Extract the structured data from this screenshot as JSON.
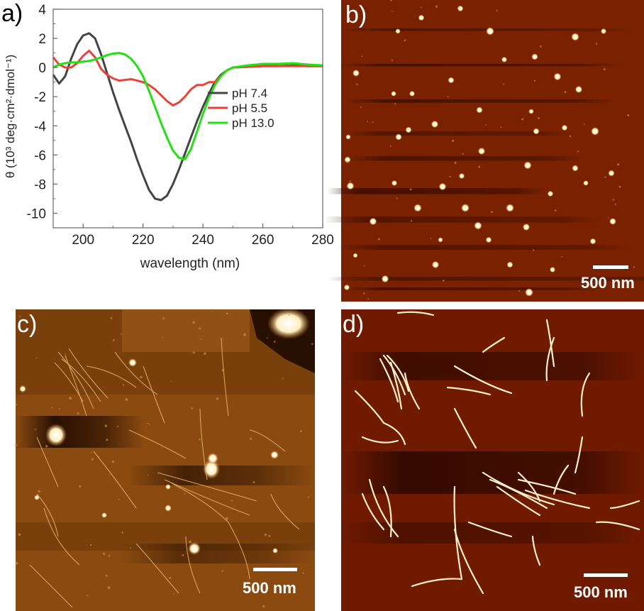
{
  "panels": {
    "a": {
      "label": "a)"
    },
    "b": {
      "label": "b)",
      "scale_label": "500 nm"
    },
    "c": {
      "label": "c)",
      "scale_label": "500 nm"
    },
    "d": {
      "label": "d)",
      "scale_label": "500 nm"
    }
  },
  "chart_data": {
    "type": "line",
    "title": "",
    "xlabel": "wavelength (nm)",
    "ylabel": "θ (10³ deg·cm²·dmol⁻¹)",
    "xlim": [
      190,
      280
    ],
    "ylim": [
      -11,
      4
    ],
    "xticks": [
      200,
      220,
      240,
      260,
      280
    ],
    "yticks": [
      4,
      2,
      0,
      -2,
      -4,
      -6,
      -8,
      -10
    ],
    "legend_position": "center-right",
    "series": [
      {
        "name": "pH 7.4",
        "color": "#444444",
        "x": [
          190,
          192,
          194,
          196,
          198,
          200,
          202,
          204,
          206,
          208,
          210,
          212,
          214,
          216,
          218,
          220,
          222,
          224,
          226,
          228,
          230,
          232,
          234,
          236,
          238,
          240,
          242,
          244,
          246,
          248,
          250,
          255,
          260,
          265,
          270,
          275,
          280
        ],
        "y": [
          -0.5,
          -1.1,
          -0.6,
          0.6,
          1.6,
          2.2,
          2.35,
          2.0,
          0.9,
          -0.4,
          -1.7,
          -2.9,
          -4.0,
          -5.1,
          -6.3,
          -7.4,
          -8.4,
          -9.0,
          -9.1,
          -8.8,
          -8.0,
          -7.0,
          -5.9,
          -4.8,
          -3.7,
          -2.7,
          -1.8,
          -1.0,
          -0.5,
          -0.2,
          0.0,
          0.05,
          0.1,
          0.1,
          0.15,
          0.1,
          0.1
        ]
      },
      {
        "name": "pH 5.5",
        "color": "#e8433b",
        "x": [
          190,
          192,
          194,
          196,
          198,
          200,
          202,
          204,
          206,
          208,
          210,
          212,
          214,
          216,
          218,
          220,
          222,
          224,
          226,
          228,
          230,
          232,
          234,
          236,
          238,
          240,
          242,
          244,
          246,
          248,
          250,
          255,
          260,
          265,
          270,
          275,
          280
        ],
        "y": [
          0.7,
          0.2,
          0.0,
          0.0,
          0.3,
          0.8,
          1.15,
          0.7,
          -0.1,
          -0.5,
          -0.75,
          -0.9,
          -0.85,
          -0.8,
          -0.9,
          -1.0,
          -1.2,
          -1.5,
          -1.9,
          -2.3,
          -2.6,
          -2.4,
          -2.0,
          -1.5,
          -1.2,
          -1.2,
          -1.0,
          -1.0,
          -0.6,
          -0.2,
          0.0,
          0.05,
          0.1,
          0.1,
          0.1,
          0.1,
          0.1
        ]
      },
      {
        "name": "pH 13.0",
        "color": "#22e012",
        "x": [
          190,
          192,
          194,
          196,
          198,
          200,
          202,
          204,
          206,
          208,
          210,
          212,
          214,
          216,
          218,
          220,
          222,
          224,
          226,
          228,
          230,
          232,
          234,
          236,
          238,
          240,
          242,
          244,
          246,
          248,
          250,
          255,
          260,
          265,
          270,
          275,
          280
        ],
        "y": [
          0.0,
          0.2,
          0.3,
          0.35,
          0.35,
          0.4,
          0.45,
          0.55,
          0.7,
          0.85,
          0.95,
          1.0,
          0.9,
          0.6,
          0.1,
          -0.6,
          -1.6,
          -2.7,
          -3.8,
          -4.8,
          -5.7,
          -6.2,
          -6.3,
          -5.6,
          -4.4,
          -3.2,
          -2.1,
          -1.2,
          -0.6,
          -0.2,
          0.0,
          0.15,
          0.25,
          0.25,
          0.3,
          0.2,
          0.15
        ]
      }
    ]
  }
}
